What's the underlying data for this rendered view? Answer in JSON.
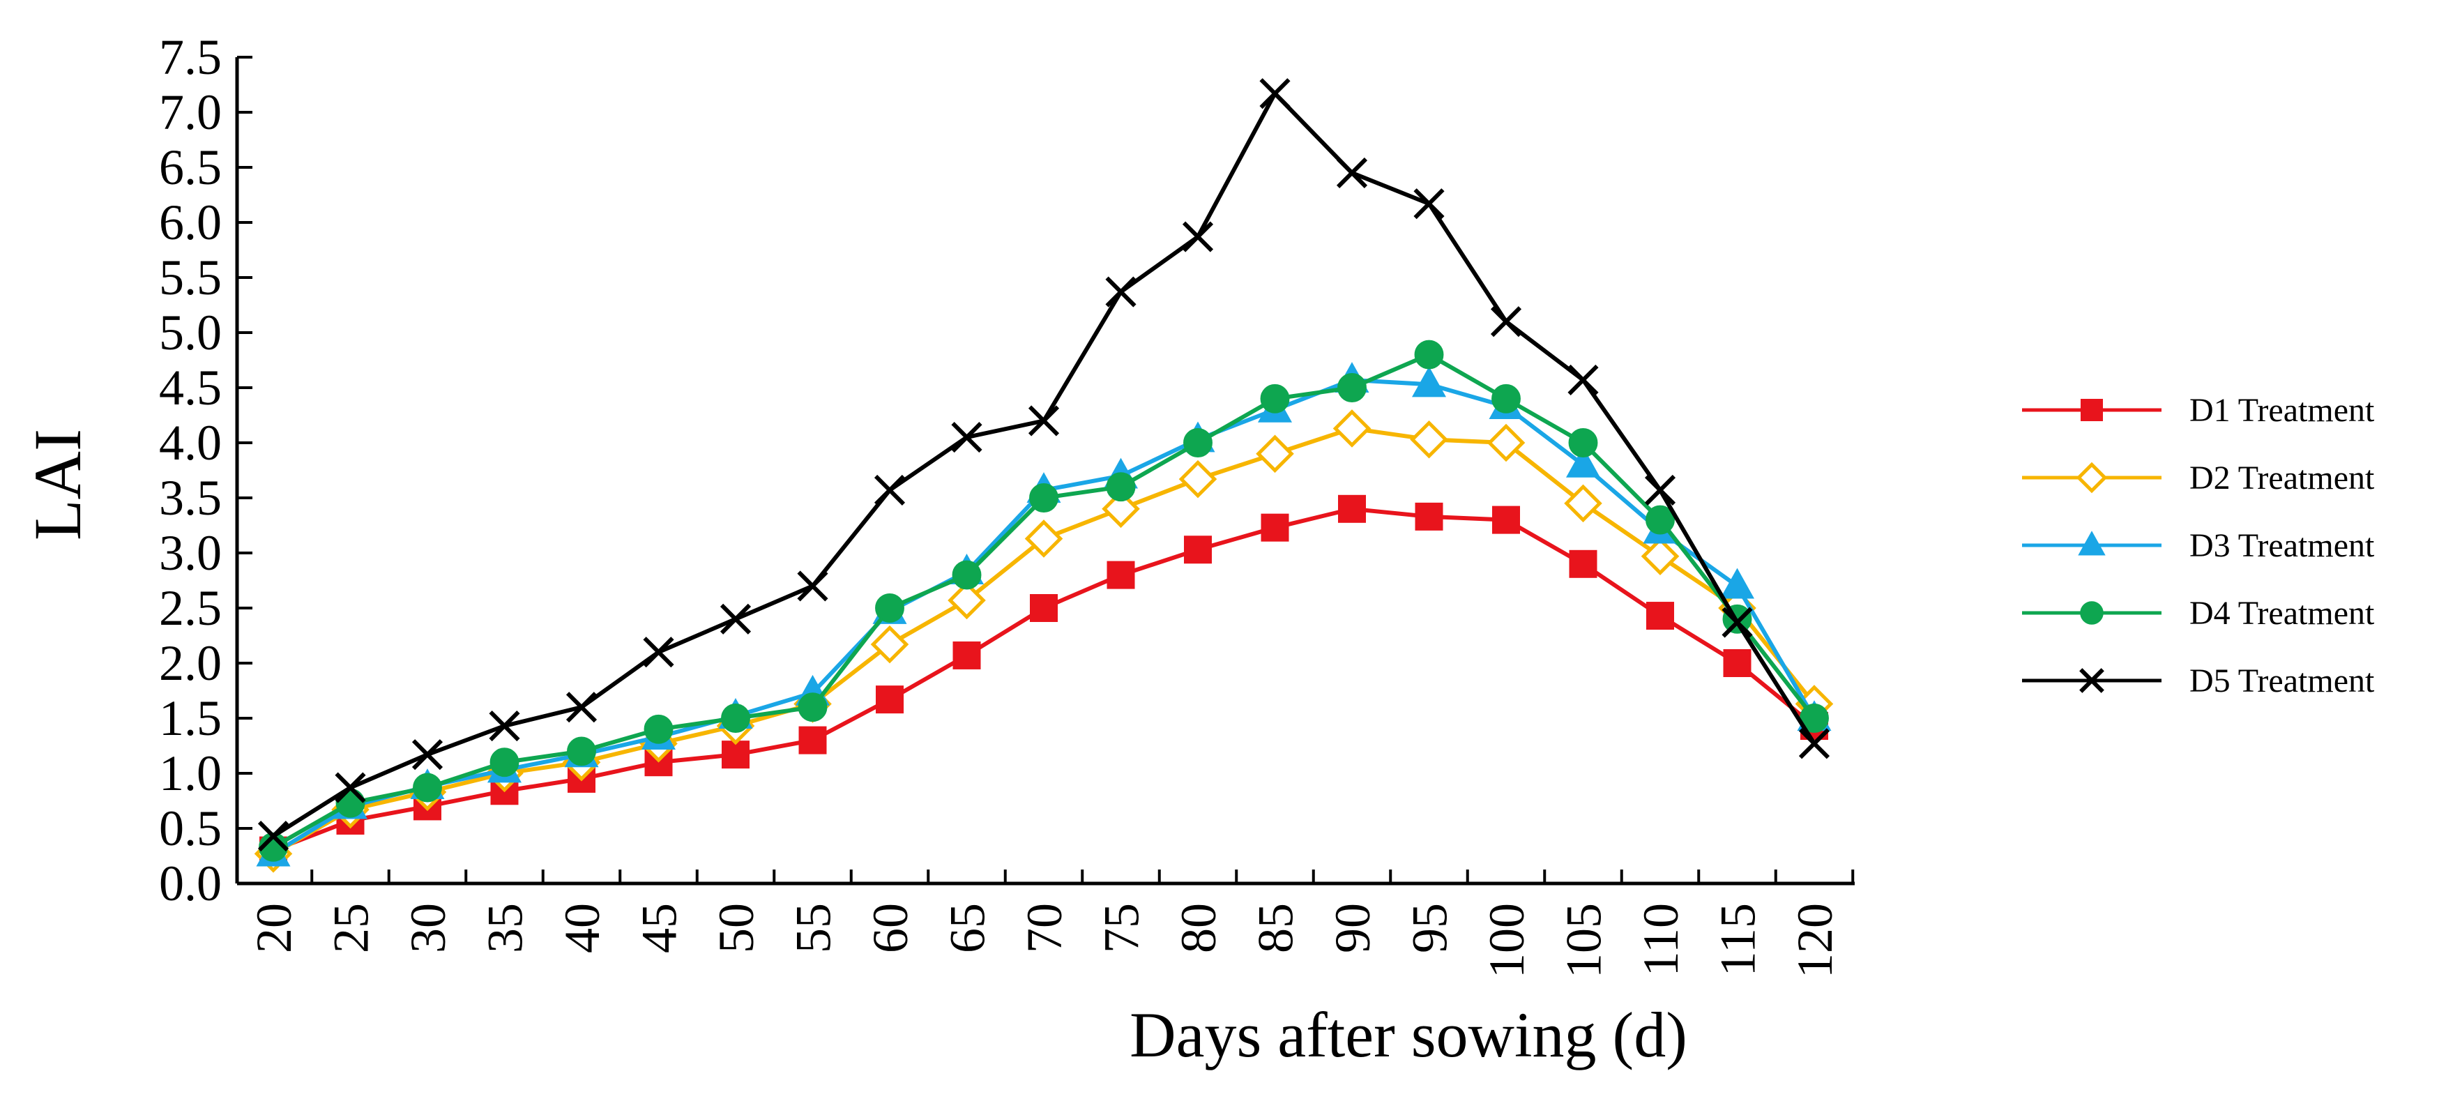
{
  "chart_data": {
    "type": "line",
    "title": "",
    "xlabel": "Days after sowing (d)",
    "ylabel": "LAI",
    "x": [
      20,
      25,
      30,
      35,
      40,
      45,
      50,
      55,
      60,
      65,
      70,
      75,
      80,
      85,
      90,
      95,
      100,
      105,
      110,
      115,
      120
    ],
    "x_tick_labels": [
      "20",
      "25",
      "30",
      "35",
      "40",
      "45",
      "50",
      "55",
      "60",
      "65",
      "70",
      "75",
      "80",
      "85",
      "90",
      "95",
      "100",
      "105",
      "110",
      "115",
      "120"
    ],
    "ylim": [
      0,
      7.5
    ],
    "y_ticks": [
      0,
      0.5,
      1.0,
      1.5,
      2.0,
      2.5,
      3.0,
      3.5,
      4.0,
      4.5,
      5.0,
      5.5,
      6.0,
      6.5,
      7.0,
      7.5
    ],
    "y_tick_labels": [
      "0.0",
      "0.5",
      "1.0",
      "1.5",
      "2.0",
      "2.5",
      "3.0",
      "3.5",
      "4.0",
      "4.5",
      "5.0",
      "5.5",
      "6.0",
      "6.5",
      "7.0",
      "7.5"
    ],
    "grid": false,
    "legend_position": "right",
    "series": [
      {
        "name": "D1 Treatment",
        "color": "#e8141c",
        "marker": "filled-square",
        "values": [
          0.3,
          0.57,
          0.7,
          0.84,
          0.95,
          1.1,
          1.17,
          1.3,
          1.67,
          2.07,
          2.5,
          2.8,
          3.03,
          3.23,
          3.4,
          3.33,
          3.3,
          2.9,
          2.43,
          2.0,
          1.43
        ]
      },
      {
        "name": "D2 Treatment",
        "color": "#f7b500",
        "marker": "open-diamond",
        "values": [
          0.27,
          0.67,
          0.83,
          1.0,
          1.1,
          1.27,
          1.43,
          1.63,
          2.17,
          2.57,
          3.13,
          3.4,
          3.67,
          3.9,
          4.13,
          4.03,
          4.0,
          3.45,
          2.97,
          2.5,
          1.63
        ]
      },
      {
        "name": "D3 Treatment",
        "color": "#1aa6e6",
        "marker": "filled-triangle",
        "values": [
          0.27,
          0.7,
          0.88,
          1.03,
          1.17,
          1.33,
          1.52,
          1.73,
          2.47,
          2.83,
          3.57,
          3.7,
          4.03,
          4.3,
          4.57,
          4.53,
          4.33,
          3.8,
          3.2,
          2.7,
          1.5
        ]
      },
      {
        "name": "D4 Treatment",
        "color": "#0ea650",
        "marker": "filled-circle",
        "values": [
          0.33,
          0.73,
          0.87,
          1.1,
          1.2,
          1.4,
          1.5,
          1.6,
          2.5,
          2.8,
          3.5,
          3.6,
          4.0,
          4.4,
          4.5,
          4.8,
          4.4,
          4.0,
          3.3,
          2.4,
          1.5
        ]
      },
      {
        "name": "D5 Treatment",
        "color": "#000000",
        "marker": "cross",
        "values": [
          0.43,
          0.87,
          1.17,
          1.43,
          1.6,
          2.1,
          2.4,
          2.7,
          3.57,
          4.05,
          4.2,
          5.37,
          5.87,
          7.17,
          6.45,
          6.17,
          5.1,
          4.57,
          3.57,
          2.37,
          1.27
        ]
      }
    ]
  }
}
